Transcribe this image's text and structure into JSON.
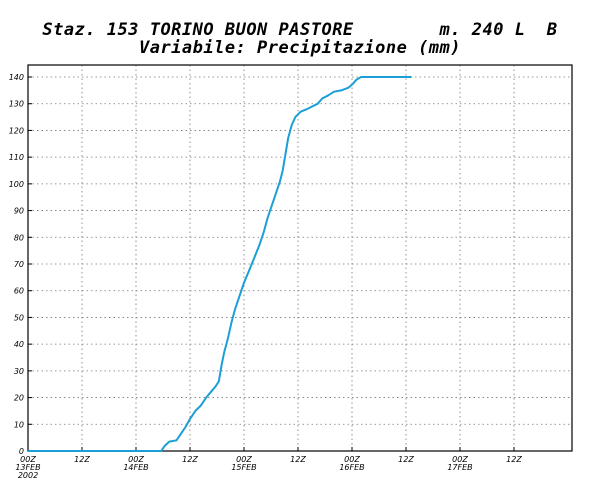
{
  "header": {
    "line1": "Staz. 153 TORINO BUON PASTORE        m. 240 L  B",
    "line2": "Variabile: Precipitazione (mm)"
  },
  "chart_data": {
    "type": "line",
    "title": "Staz. 153 TORINO BUON PASTORE        m. 240 L  B",
    "subtitle": "Variabile: Precipitazione (mm)",
    "xlabel": "",
    "ylabel": "",
    "ylim": [
      0,
      145
    ],
    "xlim": [
      0,
      102
    ],
    "yticks": [
      0,
      10,
      20,
      30,
      40,
      50,
      60,
      70,
      80,
      90,
      100,
      110,
      120,
      130,
      140
    ],
    "xticks": [
      {
        "x": 0,
        "label1": "00Z",
        "label2": "13FEB",
        "label3": "2002"
      },
      {
        "x": 12,
        "label1": "12Z",
        "label2": "",
        "label3": ""
      },
      {
        "x": 24,
        "label1": "00Z",
        "label2": "14FEB",
        "label3": ""
      },
      {
        "x": 36,
        "label1": "12Z",
        "label2": "",
        "label3": ""
      },
      {
        "x": 48,
        "label1": "00Z",
        "label2": "15FEB",
        "label3": ""
      },
      {
        "x": 60,
        "label1": "12Z",
        "label2": "",
        "label3": ""
      },
      {
        "x": 72,
        "label1": "00Z",
        "label2": "16FEB",
        "label3": ""
      },
      {
        "x": 84,
        "label1": "12Z",
        "label2": "",
        "label3": ""
      },
      {
        "x": 96,
        "label1": "00Z",
        "label2": "17FEB",
        "label3": ""
      },
      {
        "x": 108,
        "label1": "12Z",
        "label2": "",
        "label3": ""
      }
    ],
    "grid": true,
    "line_color": "#1a9fd6",
    "series": [
      {
        "values": [
          [
            0,
            0
          ],
          [
            29.6,
            0
          ],
          [
            30.4,
            2
          ],
          [
            31.4,
            3.5
          ],
          [
            33,
            4
          ],
          [
            34.2,
            7
          ],
          [
            35,
            9
          ],
          [
            36,
            12
          ],
          [
            37.2,
            15
          ],
          [
            38.4,
            17
          ],
          [
            39.6,
            20
          ],
          [
            40.6,
            22
          ],
          [
            41.6,
            24
          ],
          [
            42.4,
            26
          ],
          [
            43,
            32
          ],
          [
            43.6,
            37
          ],
          [
            44.4,
            42
          ],
          [
            45.2,
            48
          ],
          [
            46,
            53
          ],
          [
            47,
            58
          ],
          [
            48,
            63
          ],
          [
            49,
            67
          ],
          [
            50.2,
            72
          ],
          [
            51.4,
            77
          ],
          [
            52.4,
            82
          ],
          [
            53.2,
            87
          ],
          [
            54.2,
            92
          ],
          [
            55.2,
            97
          ],
          [
            56,
            101
          ],
          [
            56.6,
            105
          ],
          [
            57.2,
            111
          ],
          [
            57.8,
            117
          ],
          [
            58.6,
            122
          ],
          [
            59.4,
            125
          ],
          [
            60.6,
            127
          ],
          [
            62,
            128
          ],
          [
            63.2,
            129
          ],
          [
            64.4,
            130
          ],
          [
            65.4,
            132
          ],
          [
            66.6,
            133
          ],
          [
            68,
            134.5
          ],
          [
            69.6,
            135
          ],
          [
            71.2,
            136
          ],
          [
            72.2,
            137.5
          ],
          [
            73,
            139
          ],
          [
            74,
            140
          ],
          [
            75,
            140
          ],
          [
            85.2,
            140
          ]
        ]
      }
    ]
  }
}
